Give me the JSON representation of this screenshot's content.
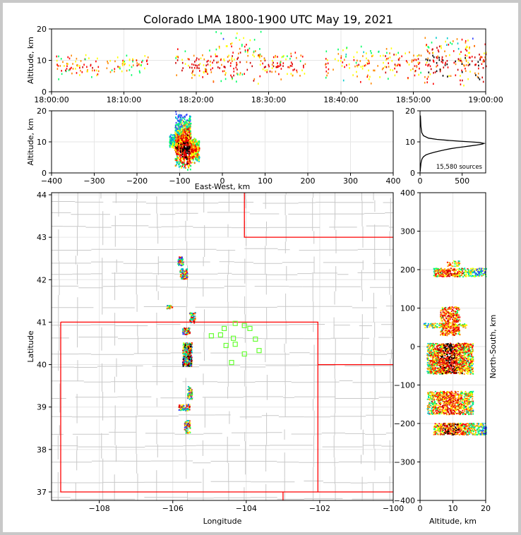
{
  "figure": {
    "title": "Colorado LMA 1800-1900 UTC May 19, 2021"
  },
  "colors": {
    "state_border": "#ff0000",
    "county_border": "#c8c8c8",
    "station_marker": "#66ff33",
    "density_palette": [
      "#3344ff",
      "#00cccc",
      "#00ff66",
      "#ffff00",
      "#ff8800",
      "#ff0000",
      "#cc0000",
      "#000000"
    ]
  },
  "chart_data": [
    {
      "id": "time-height",
      "type": "heatmap",
      "xlabel": "",
      "ylabel": "Altitude, km",
      "xlim": [
        "18:00:00",
        "19:00:00"
      ],
      "ylim": [
        0,
        20
      ],
      "xticks": [
        "18:00:00",
        "18:10:00",
        "18:20:00",
        "18:30:00",
        "18:40:00",
        "18:50:00",
        "19:00:00"
      ],
      "yticks": [
        0,
        10,
        20
      ],
      "activity_bands": [
        {
          "start_min": 0.5,
          "end_min": 6.5,
          "alt_low": 4,
          "alt_high": 13,
          "density": 0.5
        },
        {
          "start_min": 7.5,
          "end_min": 13.5,
          "alt_low": 5,
          "alt_high": 12,
          "density": 0.4
        },
        {
          "start_min": 17.0,
          "end_min": 22.0,
          "alt_low": 3,
          "alt_high": 14,
          "density": 0.6
        },
        {
          "start_min": 22.0,
          "end_min": 29.0,
          "alt_low": 2,
          "alt_high": 20,
          "density": 0.75
        },
        {
          "start_min": 29.0,
          "end_min": 35.0,
          "alt_low": 4,
          "alt_high": 14,
          "density": 0.55
        },
        {
          "start_min": 37.5,
          "end_min": 46.0,
          "alt_low": 2,
          "alt_high": 16,
          "density": 0.45
        },
        {
          "start_min": 46.0,
          "end_min": 51.0,
          "alt_low": 3,
          "alt_high": 15,
          "density": 0.6
        },
        {
          "start_min": 51.5,
          "end_min": 60.0,
          "alt_low": 2,
          "alt_high": 18,
          "density": 0.95
        }
      ]
    },
    {
      "id": "ew-height",
      "type": "heatmap",
      "xlabel": "East-West, km",
      "ylabel": "Altitude, km",
      "xlim": [
        -400,
        400
      ],
      "ylim": [
        0,
        20
      ],
      "xticks": [
        -400,
        -300,
        -200,
        -100,
        0,
        100,
        200,
        300,
        400
      ],
      "yticks": [
        0,
        10,
        20
      ],
      "activity_bands": [
        {
          "x_low": -125,
          "x_high": -112,
          "alt_low": 8,
          "alt_high": 13,
          "density": 0.3
        },
        {
          "x_low": -112,
          "x_high": -75,
          "alt_low": 1,
          "alt_high": 20,
          "density": 1.0
        },
        {
          "x_low": -75,
          "x_high": -55,
          "alt_low": 3,
          "alt_high": 12,
          "density": 0.6
        }
      ]
    },
    {
      "id": "altitude-histogram",
      "type": "line",
      "xlabel": "",
      "ylabel": "",
      "xlim": [
        0,
        780
      ],
      "ylim": [
        0,
        20
      ],
      "xticks": [
        0,
        500
      ],
      "yticks": [
        0,
        10,
        20
      ],
      "annotation": "15,580 sources",
      "x": [
        2,
        3,
        5,
        8,
        10,
        14,
        18,
        25,
        40,
        70,
        110,
        160,
        220,
        290,
        360,
        430,
        520,
        600,
        680,
        740,
        760,
        700,
        600,
        480,
        330,
        200,
        100,
        40,
        20,
        10,
        4
      ],
      "y": [
        0.4,
        1.0,
        1.6,
        2.4,
        3.0,
        3.6,
        4.0,
        4.6,
        5.2,
        5.8,
        6.2,
        6.6,
        7.0,
        7.4,
        7.8,
        8.1,
        8.4,
        8.7,
        9.0,
        9.3,
        9.5,
        9.8,
        10.0,
        10.2,
        10.5,
        10.8,
        11.2,
        12.0,
        13.0,
        15.0,
        18.5
      ]
    },
    {
      "id": "plan-view",
      "type": "scatter",
      "xlabel": "Longitude",
      "ylabel": "Latitude",
      "xlim": [
        -109.3,
        -100.0
      ],
      "ylim": [
        36.8,
        44.05
      ],
      "xticks": [
        -108,
        -106,
        -104,
        -102,
        -100
      ],
      "yticks": [
        37,
        38,
        39,
        40,
        41,
        42,
        43,
        44
      ],
      "state_borders": [
        {
          "name": "colorado",
          "lon": [
            -109.05,
            -102.05,
            -102.05,
            -109.05,
            -109.05
          ],
          "lat": [
            41.0,
            41.0,
            37.0,
            37.0,
            41.0
          ]
        },
        {
          "name": "wy-ne-line",
          "lon": [
            -104.05,
            -104.05,
            -100.0
          ],
          "lat": [
            44.05,
            43.0,
            43.0
          ]
        },
        {
          "name": "ne-ks-line",
          "lon": [
            -102.05,
            -100.0
          ],
          "lat": [
            40.0,
            40.0
          ]
        },
        {
          "name": "ok-line",
          "lon": [
            -103.0,
            -103.0
          ],
          "lat": [
            37.0,
            36.8
          ]
        },
        {
          "name": "south-line",
          "lon": [
            -102.05,
            -100.0
          ],
          "lat": [
            37.0,
            37.0
          ]
        }
      ],
      "stations": {
        "lon": [
          -104.95,
          -104.6,
          -104.3,
          -104.05,
          -103.9,
          -104.7,
          -104.35,
          -104.55,
          -104.3,
          -103.75,
          -103.65,
          -104.05,
          -104.4
        ],
        "lat": [
          40.68,
          40.85,
          40.97,
          40.92,
          40.85,
          40.7,
          40.62,
          40.45,
          40.48,
          40.6,
          40.33,
          40.25,
          40.05
        ]
      },
      "source_clusters": [
        {
          "lon": -105.8,
          "lat": 42.45,
          "w": 0.15,
          "h": 0.2,
          "density": 0.5
        },
        {
          "lon": -105.72,
          "lat": 42.15,
          "w": 0.2,
          "h": 0.25,
          "density": 0.6
        },
        {
          "lon": -106.1,
          "lat": 41.37,
          "w": 0.15,
          "h": 0.08,
          "density": 0.4
        },
        {
          "lon": -105.48,
          "lat": 41.12,
          "w": 0.15,
          "h": 0.25,
          "density": 0.6
        },
        {
          "lon": -105.65,
          "lat": 40.8,
          "w": 0.2,
          "h": 0.15,
          "density": 0.7
        },
        {
          "lon": -105.62,
          "lat": 40.25,
          "w": 0.25,
          "h": 0.55,
          "density": 0.9
        },
        {
          "lon": -105.55,
          "lat": 39.35,
          "w": 0.12,
          "h": 0.3,
          "density": 0.5
        },
        {
          "lon": -105.7,
          "lat": 39.0,
          "w": 0.3,
          "h": 0.15,
          "density": 0.6
        },
        {
          "lon": -105.62,
          "lat": 38.55,
          "w": 0.15,
          "h": 0.3,
          "density": 0.6
        }
      ]
    },
    {
      "id": "height-ns",
      "type": "heatmap",
      "xlabel": "Altitude, km",
      "ylabel": "North-South, km",
      "xlim": [
        0,
        20
      ],
      "ylim": [
        -400,
        400
      ],
      "xticks": [
        0,
        10,
        20
      ],
      "yticks": [
        -400,
        -300,
        -200,
        -100,
        0,
        100,
        200,
        300,
        400
      ],
      "activity_bands": [
        {
          "alt_low": 4,
          "alt_high": 20,
          "ns_low": 183,
          "ns_high": 205,
          "density": 0.7
        },
        {
          "alt_low": 8,
          "alt_high": 12,
          "ns_low": 210,
          "ns_high": 225,
          "density": 0.3
        },
        {
          "alt_low": 6,
          "alt_high": 12,
          "ns_low": 30,
          "ns_high": 105,
          "density": 0.6
        },
        {
          "alt_low": 1,
          "alt_high": 14,
          "ns_low": 50,
          "ns_high": 62,
          "density": 0.5
        },
        {
          "alt_low": 2,
          "alt_high": 16,
          "ns_low": -70,
          "ns_high": 10,
          "density": 0.9
        },
        {
          "alt_low": 2,
          "alt_high": 16,
          "ns_low": -175,
          "ns_high": -115,
          "density": 0.7
        },
        {
          "alt_low": 4,
          "alt_high": 20,
          "ns_low": -228,
          "ns_high": -198,
          "density": 0.8
        }
      ]
    }
  ]
}
